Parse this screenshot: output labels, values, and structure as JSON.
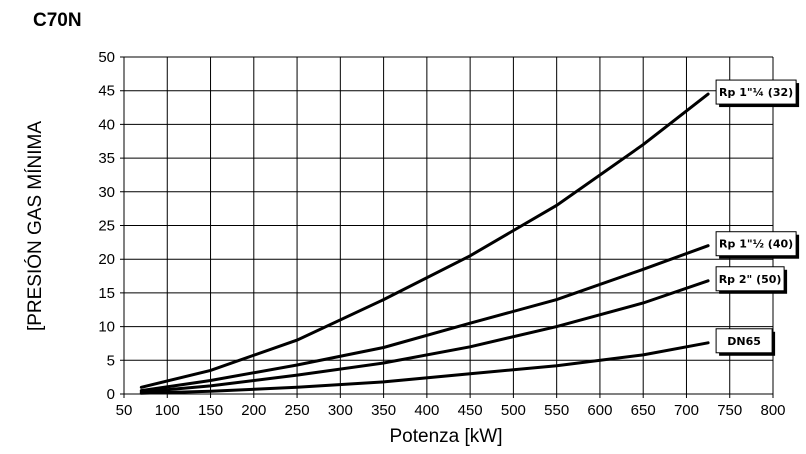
{
  "chart_data": {
    "type": "line",
    "title": "C70N",
    "xlabel": "Potenza [kW]",
    "ylabel": "[PRESIÓN GAS MÍNIMA",
    "xlim": [
      50,
      800
    ],
    "ylim": [
      0,
      50
    ],
    "x_ticks": [
      "50",
      "100",
      "150",
      "200",
      "250",
      "300",
      "350",
      "400",
      "450",
      "500",
      "550",
      "600",
      "650",
      "700",
      "750",
      "800"
    ],
    "y_ticks": [
      "0",
      "5",
      "10",
      "15",
      "20",
      "25",
      "30",
      "35",
      "40",
      "45",
      "50"
    ],
    "grid": true,
    "series": [
      {
        "name": "Rp 1\"¼ (32)",
        "x": [
          70,
          150,
          250,
          350,
          450,
          550,
          650,
          725
        ],
        "y": [
          1.0,
          3.5,
          8.0,
          14.0,
          20.5,
          28.0,
          37.0,
          44.5
        ]
      },
      {
        "name": "Rp 1\"½ (40)",
        "x": [
          70,
          150,
          250,
          350,
          450,
          550,
          650,
          725
        ],
        "y": [
          0.5,
          2.0,
          4.3,
          6.9,
          10.5,
          14.0,
          18.5,
          22.0
        ]
      },
      {
        "name": "Rp 2\" (50)",
        "x": [
          70,
          150,
          250,
          350,
          450,
          550,
          650,
          725
        ],
        "y": [
          0.3,
          1.2,
          2.8,
          4.6,
          7.0,
          10.0,
          13.5,
          16.8
        ]
      },
      {
        "name": "DN65",
        "x": [
          70,
          150,
          250,
          350,
          450,
          550,
          650,
          725
        ],
        "y": [
          0.1,
          0.4,
          1.0,
          1.8,
          3.0,
          4.2,
          5.8,
          7.6
        ]
      }
    ]
  }
}
